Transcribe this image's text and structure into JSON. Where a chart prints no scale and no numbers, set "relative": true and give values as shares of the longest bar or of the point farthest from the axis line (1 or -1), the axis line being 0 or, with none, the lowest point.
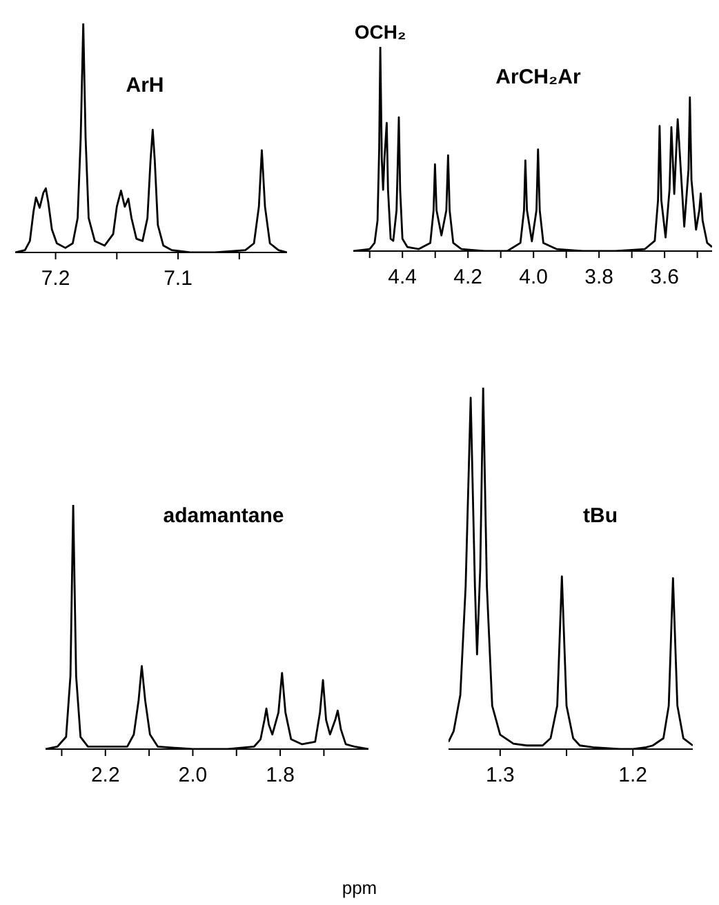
{
  "chart_data": [
    {
      "type": "line",
      "title": "ArH",
      "relative": true,
      "xlim": [
        7.233,
        7.011
      ],
      "xticks": [
        7.2,
        {
          "value": 7.15,
          "label": null
        },
        7.1,
        {
          "value": 7.05,
          "label": null
        }
      ],
      "x": [
        7.233,
        7.225,
        7.221,
        7.218,
        7.216,
        7.213,
        7.21,
        7.208,
        7.206,
        7.203,
        7.199,
        7.192,
        7.186,
        7.182,
        7.1795,
        7.1774,
        7.1755,
        7.173,
        7.168,
        7.16,
        7.153,
        7.15,
        7.1466,
        7.1435,
        7.1406,
        7.138,
        7.134,
        7.129,
        7.125,
        7.1225,
        7.1207,
        7.119,
        7.1165,
        7.112,
        7.105,
        7.09,
        7.07,
        7.045,
        7.038,
        7.034,
        7.0316,
        7.029,
        7.025,
        7.018,
        7.011
      ],
      "series": [
        {
          "color": "#000000",
          "values": [
            0.0,
            0.01,
            0.05,
            0.18,
            0.24,
            0.195,
            0.26,
            0.28,
            0.22,
            0.1,
            0.04,
            0.02,
            0.04,
            0.15,
            0.5,
            1.0,
            0.5,
            0.15,
            0.05,
            0.03,
            0.08,
            0.2,
            0.27,
            0.2,
            0.235,
            0.15,
            0.06,
            0.05,
            0.15,
            0.4,
            0.536,
            0.4,
            0.12,
            0.03,
            0.01,
            0.0,
            0.0,
            0.01,
            0.04,
            0.2,
            0.446,
            0.2,
            0.04,
            0.01,
            0.0
          ]
        }
      ]
    },
    {
      "type": "line",
      "title": "ArCH₂Ar",
      "relative": true,
      "xlim": [
        4.55,
        3.455
      ],
      "xticks": [
        {
          "value": 4.5,
          "label": null
        },
        4.4,
        {
          "value": 4.3,
          "label": null
        },
        4.2,
        {
          "value": 4.1,
          "label": null
        },
        {
          "value": 4.0,
          "label": "4.0"
        },
        {
          "value": 3.9,
          "label": null
        },
        3.8,
        {
          "value": 3.7,
          "label": null
        },
        3.6,
        {
          "value": 3.5,
          "label": null
        }
      ],
      "annotations": [
        {
          "text": "OCH₂",
          "x": 4.4676,
          "y": 1.0
        }
      ],
      "x": [
        4.55,
        4.5,
        4.485,
        4.476,
        4.471,
        4.4676,
        4.463,
        4.459,
        4.455,
        4.448,
        4.444,
        4.436,
        4.428,
        4.418,
        4.414,
        4.411,
        4.407,
        4.4,
        4.385,
        4.35,
        4.315,
        4.305,
        4.3007,
        4.296,
        4.281,
        4.266,
        4.2607,
        4.256,
        4.245,
        4.22,
        4.15,
        4.08,
        4.04,
        4.029,
        4.0248,
        4.02,
        4.005,
        3.991,
        3.9862,
        3.981,
        3.97,
        3.93,
        3.85,
        3.75,
        3.66,
        3.63,
        3.62,
        3.6152,
        3.61,
        3.597,
        3.585,
        3.5793,
        3.5705,
        3.56,
        3.54,
        3.527,
        3.5228,
        3.518,
        3.504,
        3.494,
        3.4897,
        3.484,
        3.47,
        3.455
      ],
      "series": [
        {
          "color": "#000000",
          "values": [
            0.0,
            0.01,
            0.04,
            0.15,
            0.5,
            1.0,
            0.45,
            0.3,
            0.45,
            0.628,
            0.3,
            0.06,
            0.05,
            0.2,
            0.45,
            0.655,
            0.3,
            0.06,
            0.02,
            0.01,
            0.04,
            0.2,
            0.425,
            0.2,
            0.077,
            0.2,
            0.469,
            0.2,
            0.04,
            0.01,
            0.0,
            0.0,
            0.04,
            0.2,
            0.444,
            0.2,
            0.048,
            0.2,
            0.498,
            0.2,
            0.04,
            0.01,
            0.0,
            0.0,
            0.01,
            0.05,
            0.25,
            0.613,
            0.25,
            0.067,
            0.3,
            0.607,
            0.28,
            0.646,
            0.12,
            0.4,
            0.753,
            0.35,
            0.105,
            0.2,
            0.282,
            0.15,
            0.04,
            0.02
          ]
        }
      ]
    },
    {
      "type": "line",
      "title": "adamantane",
      "relative": true,
      "xlim": [
        2.337,
        1.598
      ],
      "xticks": [
        {
          "value": 2.3,
          "label": null
        },
        2.2,
        {
          "value": 2.1,
          "label": null
        },
        {
          "value": 2.0,
          "label": "2.0"
        },
        {
          "value": 1.9,
          "label": null
        },
        1.8,
        {
          "value": 1.7,
          "label": null
        }
      ],
      "x": [
        2.337,
        2.31,
        2.29,
        2.28,
        2.2737,
        2.267,
        2.257,
        2.24,
        2.2,
        2.15,
        2.135,
        2.124,
        2.1168,
        2.109,
        2.098,
        2.08,
        2.0,
        1.92,
        1.86,
        1.845,
        1.836,
        1.8316,
        1.826,
        1.818,
        1.804,
        1.7958,
        1.788,
        1.775,
        1.75,
        1.72,
        1.709,
        1.7021,
        1.695,
        1.686,
        1.674,
        1.6684,
        1.661,
        1.65,
        1.63,
        1.598
      ],
      "series": [
        {
          "color": "#000000",
          "values": [
            0.0,
            0.01,
            0.05,
            0.3,
            1.0,
            0.3,
            0.05,
            0.01,
            0.01,
            0.01,
            0.06,
            0.2,
            0.34,
            0.2,
            0.06,
            0.01,
            0.0,
            0.0,
            0.01,
            0.04,
            0.12,
            0.166,
            0.1,
            0.06,
            0.15,
            0.312,
            0.15,
            0.04,
            0.02,
            0.03,
            0.15,
            0.283,
            0.12,
            0.06,
            0.12,
            0.158,
            0.08,
            0.02,
            0.01,
            0.0
          ]
        }
      ]
    },
    {
      "type": "line",
      "title": "tBu",
      "relative": true,
      "xlim": [
        1.3389,
        1.1549
      ],
      "xticks": [
        1.3,
        {
          "value": 1.25,
          "label": null
        },
        1.2
      ],
      "annotations": [
        "ppm"
      ],
      "x": [
        1.3389,
        1.335,
        1.33,
        1.326,
        1.3222,
        1.319,
        1.3174,
        1.315,
        1.3128,
        1.31,
        1.306,
        1.3,
        1.29,
        1.28,
        1.268,
        1.262,
        1.257,
        1.2535,
        1.25,
        1.245,
        1.24,
        1.23,
        1.21,
        1.2,
        1.19,
        1.185,
        1.177,
        1.173,
        1.1698,
        1.1665,
        1.162,
        1.1549
      ],
      "series": [
        {
          "color": "#000000",
          "values": [
            0.02,
            0.05,
            0.15,
            0.45,
            0.972,
            0.45,
            0.262,
            0.5,
            1.0,
            0.45,
            0.12,
            0.04,
            0.015,
            0.01,
            0.01,
            0.03,
            0.12,
            0.478,
            0.12,
            0.03,
            0.01,
            0.005,
            0.0,
            0.0,
            0.005,
            0.01,
            0.03,
            0.12,
            0.473,
            0.12,
            0.03,
            0.01
          ]
        }
      ]
    }
  ]
}
